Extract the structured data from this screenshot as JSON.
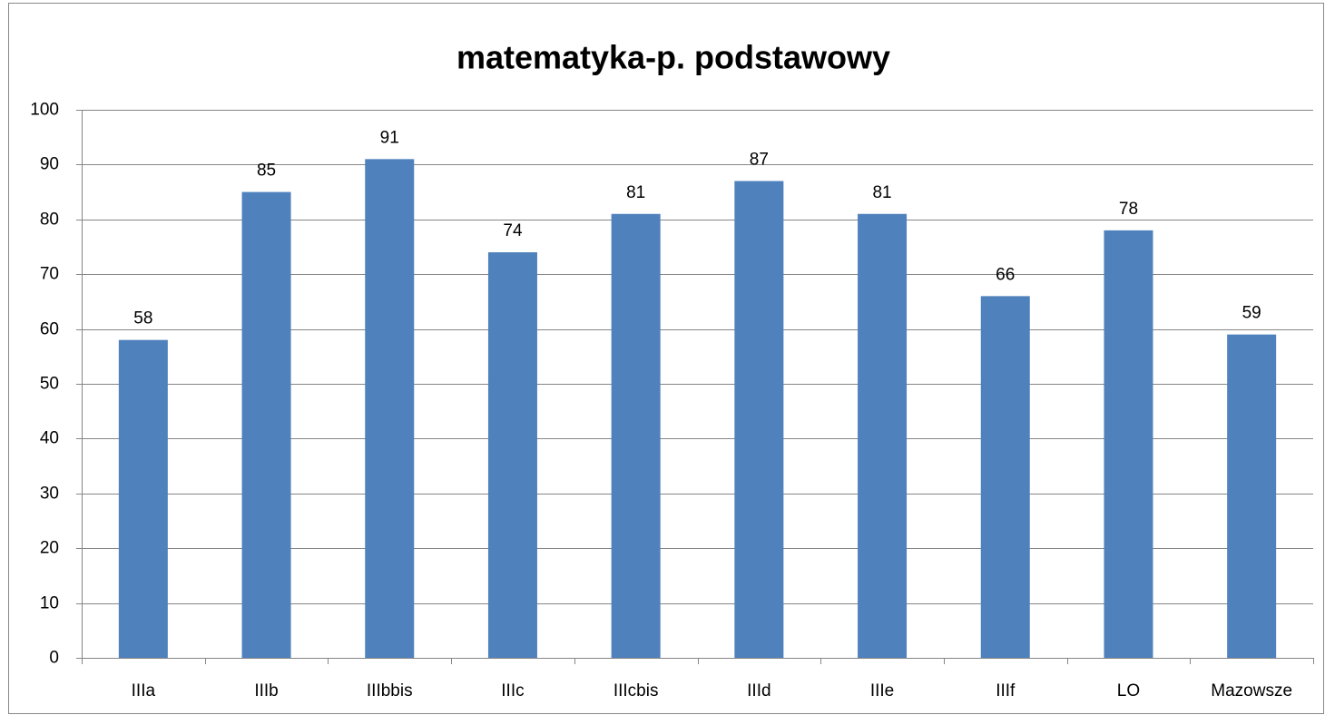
{
  "chart_data": {
    "type": "bar",
    "title": "matematyka-p. podstawowy",
    "categories": [
      "IIIa",
      "IIIb",
      "IIIbbis",
      "IIIc",
      "IIIcbis",
      "IIId",
      "IIIe",
      "IIIf",
      "LO",
      "Mazowsze"
    ],
    "values": [
      58,
      85,
      91,
      74,
      81,
      87,
      81,
      66,
      78,
      59
    ],
    "color": "#4f81bd",
    "ylim": [
      0,
      100
    ],
    "yticks": [
      0,
      10,
      20,
      30,
      40,
      50,
      60,
      70,
      80,
      90,
      100
    ],
    "grid": true
  }
}
